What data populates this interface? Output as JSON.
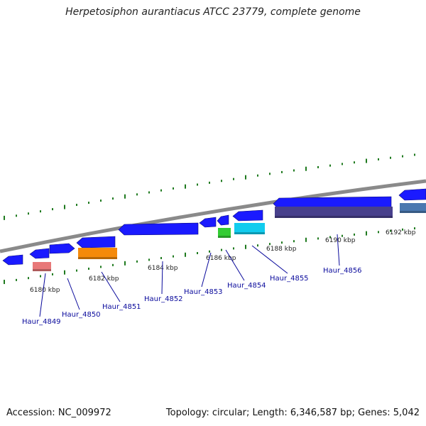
{
  "title": "Herpetosiphon aurantiacus ATCC 23779, complete genome",
  "footer": {
    "accession": "Accession: NC_009972",
    "summary": "Topology: circular; Length: 6,346,587 bp; Genes: 5,042"
  },
  "colors": {
    "backbone": "#8a8a8a",
    "cds_forward": "#1a1aff",
    "tick_green": "#1f7a1f",
    "label_blue": "#0a0a9c"
  },
  "ticks": [
    {
      "label": "6180 kbp"
    },
    {
      "label": "6182 kbp"
    },
    {
      "label": "6184 kbp"
    },
    {
      "label": "6186 kbp"
    },
    {
      "label": "6188 kbp"
    },
    {
      "label": "6190 kbp"
    },
    {
      "label": "6192 kbp"
    }
  ],
  "genes": [
    {
      "name": "Haur_4849",
      "color": "#e87878"
    },
    {
      "name": "Haur_4850",
      "color": "#1a1aff"
    },
    {
      "name": "Haur_4851",
      "color": "#f58a0a"
    },
    {
      "name": "Haur_4852",
      "color": "#1a1aff"
    },
    {
      "name": "Haur_4853",
      "color": "#1a1aff"
    },
    {
      "name": "Haur_4854",
      "color": "#33cc33"
    },
    {
      "name": "Haur_4855",
      "color": "#11ccee"
    },
    {
      "name": "Haur_4856",
      "color": "#48408c"
    }
  ]
}
